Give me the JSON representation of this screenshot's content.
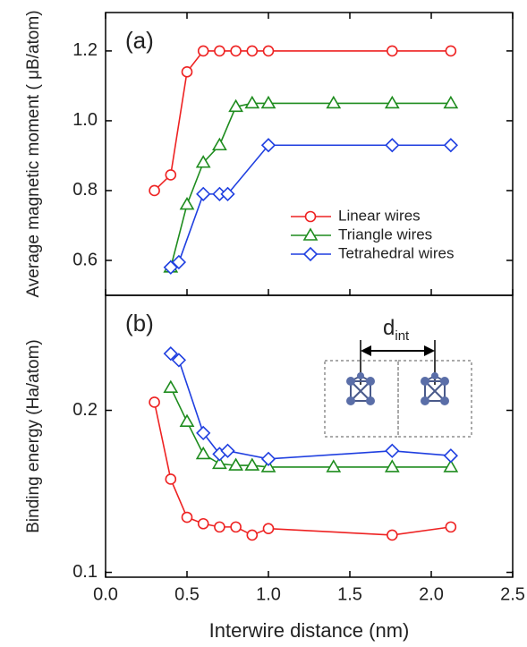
{
  "chart_data": [
    {
      "type": "line",
      "annotation": "(a)",
      "ylabel": "Average magnetic moment ( μB/atom)",
      "xlim": [
        0,
        2.5
      ],
      "ylim": [
        0.5,
        1.31
      ],
      "yticks": [
        0.6,
        0.8,
        {
          "value": 1.0,
          "label": "1.0"
        },
        1.2
      ],
      "legend": "lower right",
      "series": [
        {
          "name": "Linear wires",
          "color": "#ee2222",
          "marker": "circle",
          "x": [
            0.3,
            0.4,
            0.5,
            0.6,
            0.7,
            0.8,
            0.9,
            1.0,
            1.76,
            2.12
          ],
          "values": [
            0.8,
            0.845,
            1.14,
            1.2,
            1.2,
            1.2,
            1.2,
            1.2,
            1.2,
            1.2
          ]
        },
        {
          "name": "Triangle wires",
          "color": "#1e8c1e",
          "marker": "triangle",
          "x": [
            0.4,
            0.5,
            0.6,
            0.7,
            0.8,
            0.9,
            1.0,
            1.4,
            1.76,
            2.12
          ],
          "values": [
            0.58,
            0.76,
            0.88,
            0.93,
            1.04,
            1.05,
            1.05,
            1.05,
            1.05,
            1.05
          ]
        },
        {
          "name": "Tetrahedral wires",
          "color": "#1f3fe0",
          "marker": "diamond",
          "x": [
            0.4,
            0.45,
            0.6,
            0.7,
            0.75,
            1.0,
            1.76,
            2.12
          ],
          "values": [
            0.58,
            0.595,
            0.79,
            0.79,
            0.79,
            0.93,
            0.93,
            0.93
          ]
        }
      ]
    },
    {
      "type": "line",
      "annotation": "(b)",
      "ylabel": "Binding energy (Ha/atom)",
      "xlabel": "Interwire distance (nm)",
      "inset_label": {
        "main": "d",
        "sub": "int"
      },
      "xlim": [
        0,
        2.5
      ],
      "ylim": [
        0.097,
        0.271
      ],
      "xticks": [
        {
          "value": 0,
          "label": "0.0"
        },
        0.5,
        {
          "value": 1.0,
          "label": "1.0"
        },
        1.5,
        {
          "value": 2.0,
          "label": "2.0"
        },
        2.5
      ],
      "yticks": [
        0.1,
        0.2
      ],
      "series": [
        {
          "color": "#ee2222",
          "marker": "circle",
          "x": [
            0.3,
            0.4,
            0.5,
            0.6,
            0.7,
            0.8,
            0.9,
            1.0,
            1.76,
            2.12
          ],
          "values": [
            0.205,
            0.1575,
            0.134,
            0.13,
            0.128,
            0.128,
            0.123,
            0.127,
            0.123,
            0.128
          ]
        },
        {
          "color": "#1e8c1e",
          "marker": "triangle",
          "x": [
            0.4,
            0.5,
            0.6,
            0.7,
            0.8,
            0.9,
            1.0,
            1.4,
            1.76,
            2.12
          ],
          "values": [
            0.214,
            0.193,
            0.173,
            0.167,
            0.166,
            0.166,
            0.165,
            0.165,
            0.165,
            0.165
          ]
        },
        {
          "color": "#1f3fe0",
          "marker": "diamond",
          "x": [
            0.4,
            0.45,
            0.6,
            0.7,
            0.75,
            1.0,
            1.76,
            2.12
          ],
          "values": [
            0.235,
            0.231,
            0.186,
            0.173,
            0.175,
            0.17,
            0.175,
            0.172
          ]
        }
      ]
    }
  ]
}
